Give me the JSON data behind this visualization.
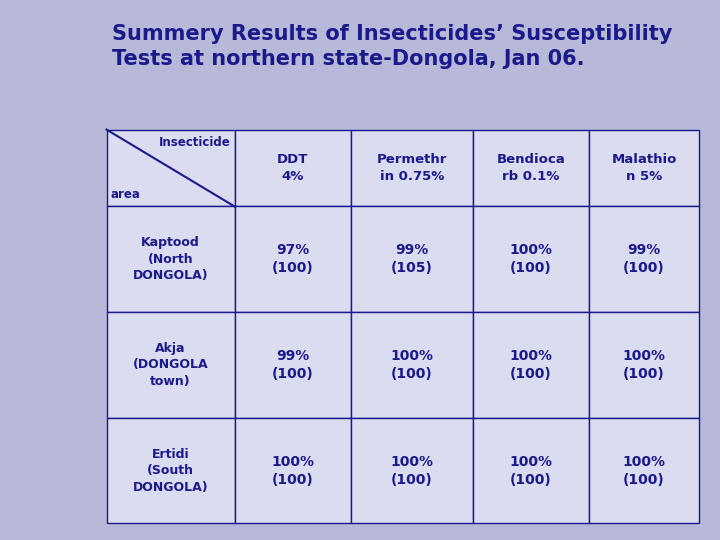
{
  "title_line1": "Summery Results of Insecticides’ Susceptibility",
  "title_line2": "Tests at northern state-Dongola, Jan 06.",
  "title_color": "#1a1a8c",
  "title_fontsize": 15,
  "background_color": "#b8b8d8",
  "cell_bg": "#dcdcf0",
  "text_color": "#1a1a8c",
  "border_color": "#1a1a8c",
  "col_headers": [
    "DDT\n4%",
    "Permethr\nin 0.75%",
    "Bendioca\nrb 0.1%",
    "Malathio\nn 5%"
  ],
  "row_header_top": "Insecticide",
  "row_header_bottom": "area",
  "rows": [
    {
      "label": "Kaptood\n(North\nDONGOLA)",
      "values": [
        "97%\n(100)",
        "99%\n(105)",
        "100%\n(100)",
        "99%\n(100)"
      ]
    },
    {
      "label": "Akja\n(DONGOLA\ntown)",
      "values": [
        "99%\n(100)",
        "100%\n(100)",
        "100%\n(100)",
        "100%\n(100)"
      ]
    },
    {
      "label": "Ertidi\n(South\nDONGOLA)",
      "values": [
        "100%\n(100)",
        "100%\n(100)",
        "100%\n(100)",
        "100%\n(100)"
      ]
    }
  ]
}
